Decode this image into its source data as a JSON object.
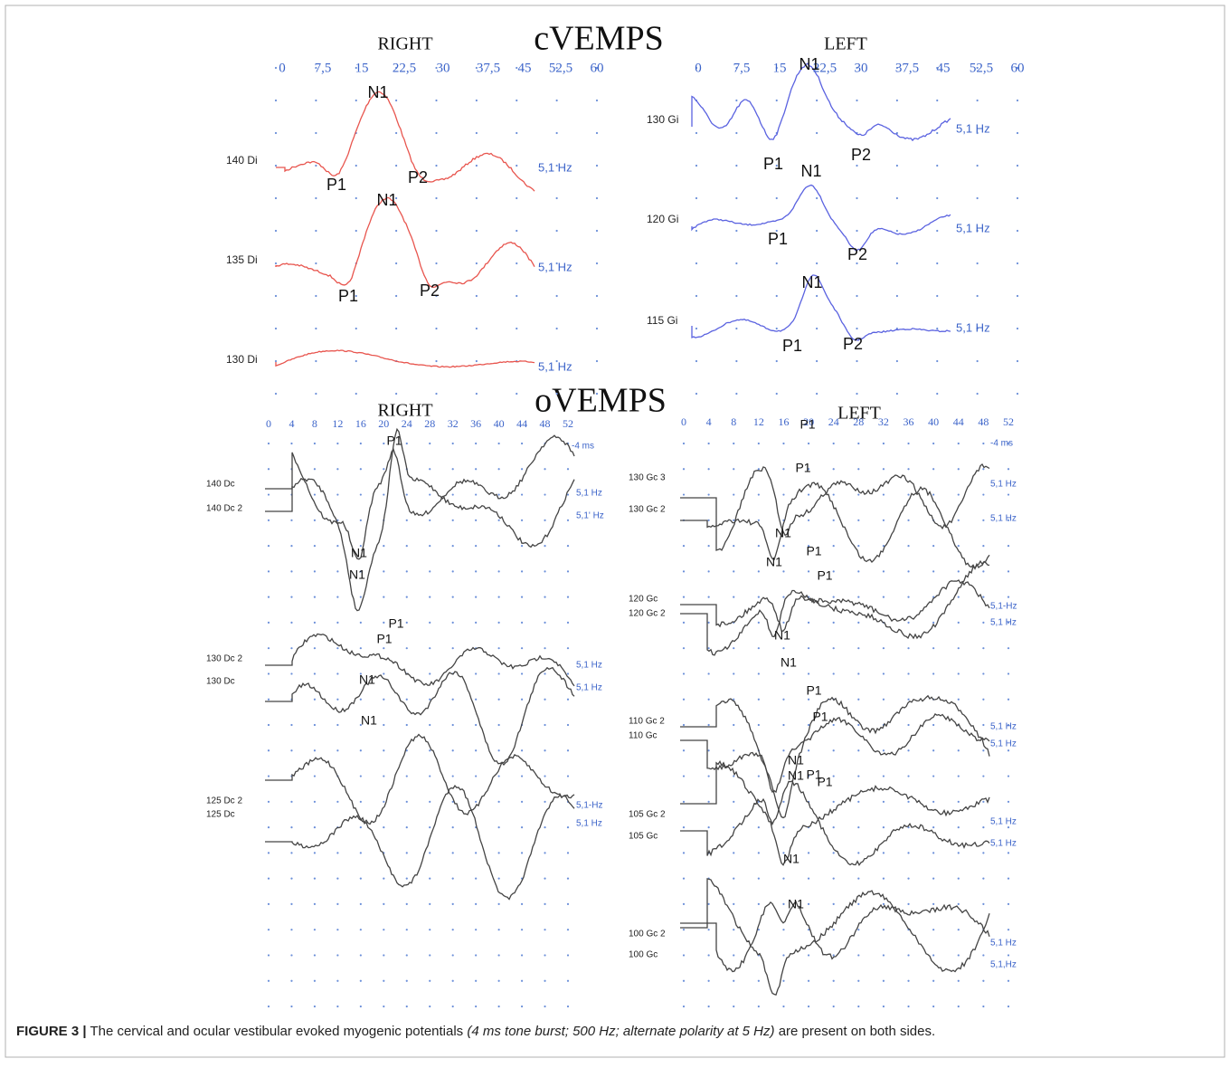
{
  "cvemps": {
    "title": "cVEMPS",
    "right": {
      "side": "RIGHT",
      "ticks": [
        "0",
        "7,5",
        "15",
        "22,5",
        "30",
        "37,5",
        "45",
        "52,5",
        "60"
      ],
      "traces": [
        {
          "label": "140 Di",
          "hz": "5,1 Hz"
        },
        {
          "label": "135 Di",
          "hz": "5,1 Hz"
        },
        {
          "label": "130 Di",
          "hz": "5,1 Hz"
        }
      ],
      "peaks": [
        "N1",
        "P1",
        "P2",
        "N1",
        "P1",
        "P2"
      ]
    },
    "left": {
      "side": "LEFT",
      "ticks": [
        "0",
        "7,5",
        "15",
        "22,5",
        "30",
        "37,5",
        "45",
        "52,5",
        "60"
      ],
      "traces": [
        {
          "label": "130 Gi",
          "hz": "5,1 Hz"
        },
        {
          "label": "120 Gi",
          "hz": "5,1 Hz"
        },
        {
          "label": "115 Gi",
          "hz": "5,1 Hz"
        }
      ],
      "peaks": [
        "N1",
        "P1",
        "P2",
        "N1",
        "P1",
        "P2",
        "N1",
        "P1",
        "P2"
      ]
    }
  },
  "ovemps": {
    "title": "oVEMPS",
    "right": {
      "side": "RIGHT",
      "ticks": [
        "0",
        "4",
        "8",
        "12",
        "16",
        "20",
        "24",
        "28",
        "32",
        "36",
        "40",
        "44",
        "48",
        "52"
      ],
      "ms": "-4 ms",
      "traces": [
        {
          "label": "140 Dc",
          "hz": "5,1 Hz"
        },
        {
          "label": "140 Dc 2",
          "hz": "5,1' Hz"
        },
        {
          "label": "130 Dc 2",
          "hz": "5,1 Hz"
        },
        {
          "label": "130 Dc",
          "hz": "5,1 Hz"
        },
        {
          "label": "125 Dc 2",
          "hz": "5,1-Hz"
        },
        {
          "label": "125 Dc",
          "hz": "5,1 Hz"
        }
      ],
      "peaks": [
        "P1",
        "N1",
        "N1",
        "P1",
        "P1",
        "N1",
        "N1"
      ]
    },
    "left": {
      "side": "LEFT",
      "ticks": [
        "0",
        "4",
        "8",
        "12",
        "16",
        "20",
        "24",
        "28",
        "32",
        "36",
        "40",
        "44",
        "48",
        "52"
      ],
      "ms": "-4 ms",
      "traces": [
        {
          "label": "130 Gc 3",
          "hz": "5,1 Hz"
        },
        {
          "label": "130 Gc 2",
          "hz": "5,1 Hz"
        },
        {
          "label": "120 Gc",
          "hz": "5,1-Hz"
        },
        {
          "label": "120 Gc 2",
          "hz": "5,1 Hz"
        },
        {
          "label": "110 Gc 2",
          "hz": "5,1 Hz"
        },
        {
          "label": "110 Gc",
          "hz": "5,1 Hz"
        },
        {
          "label": "105 Gc 2",
          "hz": "5,1 Hz"
        },
        {
          "label": "105 Gc",
          "hz": "5,1 Hz"
        },
        {
          "label": "100 Gc 2",
          "hz": "5,1 Hz"
        },
        {
          "label": "100 Gc",
          "hz": "5,1,Hz"
        }
      ],
      "peaks": [
        "P1",
        "P1",
        "N1",
        "N1",
        "P1",
        "P1",
        "N1",
        "N1",
        "P1",
        "P1",
        "N1",
        "N1",
        "P1",
        "P1",
        "N1",
        "N1"
      ]
    }
  },
  "caption": {
    "label": "FIGURE 3 |",
    "text_before": "The cervical and ocular vestibular evoked myogenic potentials",
    "italic": "(4 ms tone burst; 500 Hz; alternate polarity at 5 Hz)",
    "text_after": "are present on both sides."
  }
}
